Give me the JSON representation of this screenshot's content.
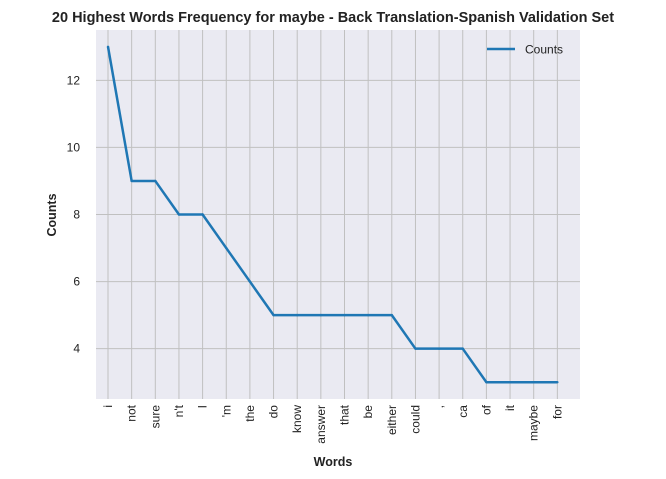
{
  "chart_data": {
    "type": "line",
    "title": "20 Highest Words Frequency for maybe - Back Translation-Spanish Validation Set",
    "xlabel": "Words",
    "ylabel": "Counts",
    "categories": [
      "i",
      "not",
      "sure",
      "n't",
      "I",
      "'m",
      "the",
      "do",
      "know",
      "answer",
      "that",
      "be",
      "either",
      "could",
      ",",
      "ca",
      "of",
      "it",
      "maybe",
      "for"
    ],
    "series": [
      {
        "name": "Counts",
        "values": [
          13,
          9,
          9,
          8,
          8,
          7,
          6,
          5,
          5,
          5,
          5,
          5,
          5,
          4,
          4,
          4,
          3,
          3,
          3,
          3
        ]
      }
    ],
    "yticks": [
      4,
      6,
      8,
      10,
      12
    ],
    "ylim": [
      2.5,
      13.5
    ],
    "grid": true,
    "legend_position": "top-right",
    "colors": {
      "line": "#1f77b4",
      "background": "#eaeaf2",
      "grid": "#c0c0c0"
    }
  }
}
